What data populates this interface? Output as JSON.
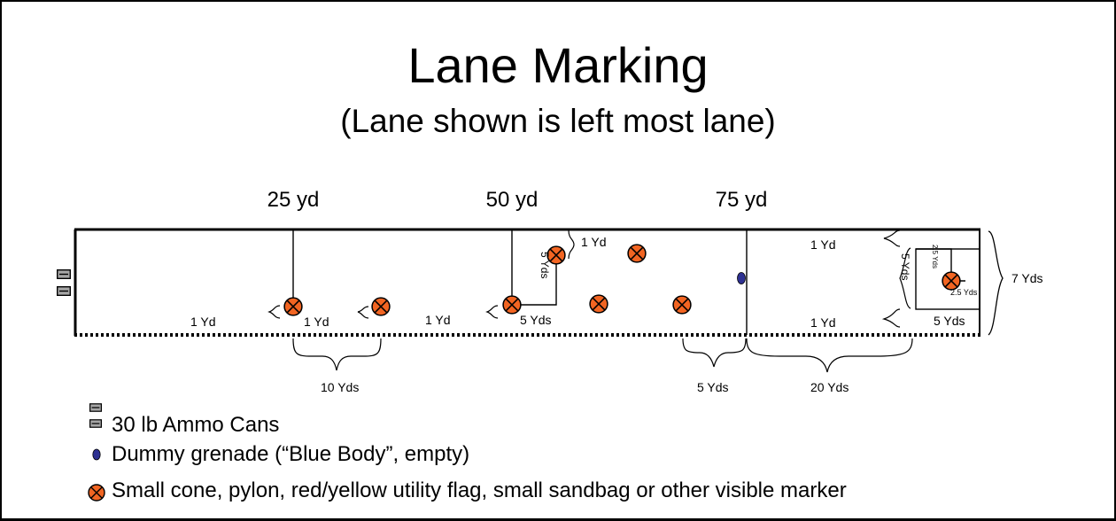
{
  "slide": {
    "title": "Lane Marking",
    "subtitle": "(Lane shown is left most lane)"
  },
  "distance_markers": [
    "25 yd",
    "50 yd",
    "75 yd"
  ],
  "measurements": {
    "one_yd": "1 Yd",
    "five_yds": "5 Yds",
    "five_yds_vertical": "5 Yds",
    "ten_yds": "10 Yds",
    "twenty_yds": "20 Yds",
    "seven_yds": "7 Yds",
    "two_five_yds": "2.5 Yds",
    "two_five_yds_vertical": "2.5 Yds"
  },
  "legend": {
    "ammo": "30 lb Ammo Cans",
    "grenade": "Dummy grenade (“Blue Body”, empty)",
    "cone": "Small cone, pylon, red/yellow utility flag, small sandbag or other visible marker"
  },
  "colors": {
    "cone_fill": "#f26522",
    "grenade_fill": "#2e3192",
    "ammo_fill": "#a6a6a6"
  }
}
